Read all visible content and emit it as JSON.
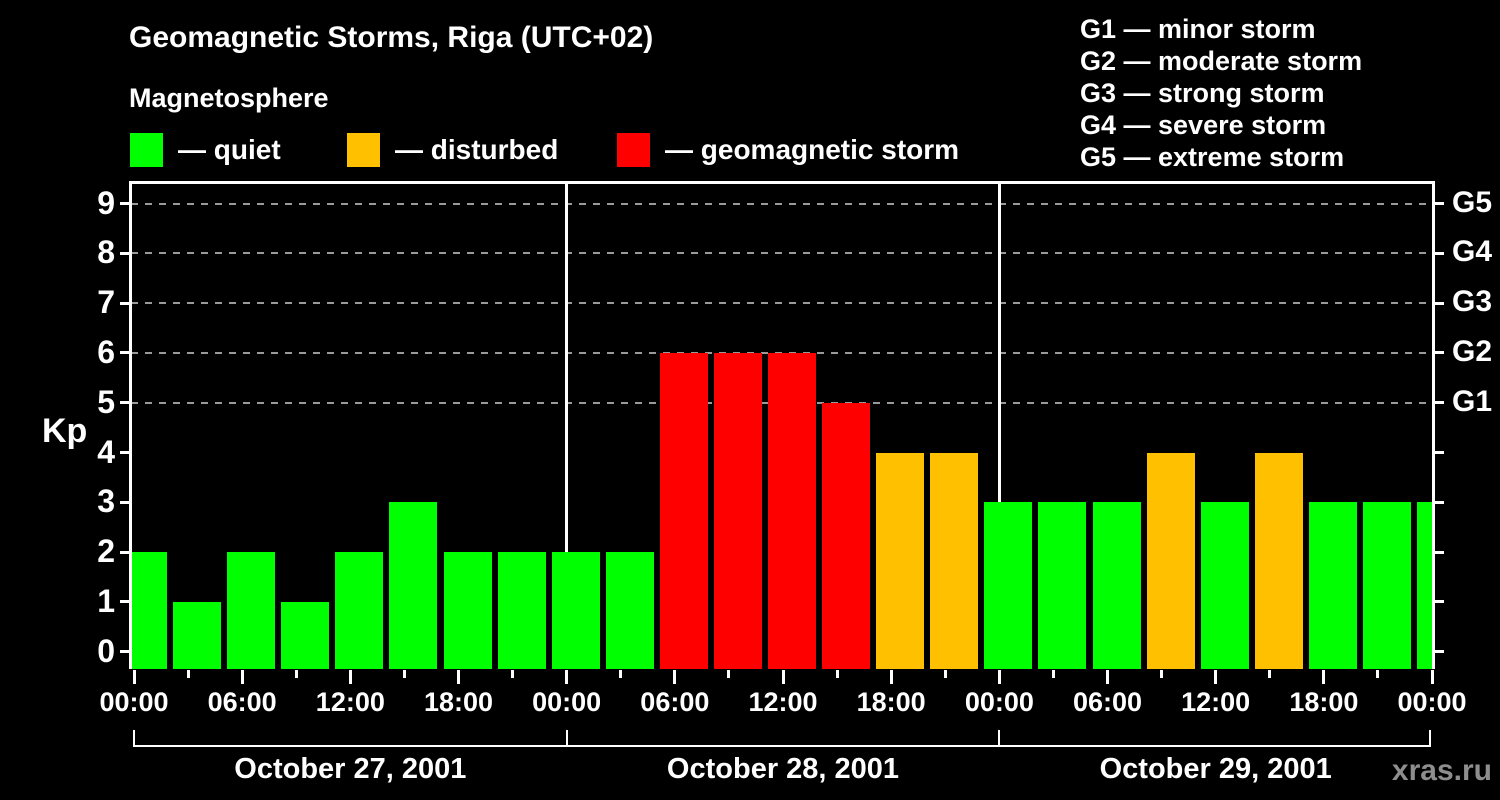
{
  "title": "Geomagnetic Storms, Riga (UTC+02)",
  "subtitle": "Magnetosphere",
  "legend": {
    "items": [
      {
        "label": "— quiet",
        "color": "#00ff00"
      },
      {
        "label": "— disturbed",
        "color": "#ffc000"
      },
      {
        "label": "— geomagnetic storm",
        "color": "#ff0000"
      }
    ]
  },
  "storm_scale_legend": [
    "G1 — minor storm",
    "G2 — moderate storm",
    "G3 — strong storm",
    "G4 — severe storm",
    "G5 — extreme storm"
  ],
  "watermark": "xras.ru",
  "chart_data": {
    "type": "bar",
    "ylabel": "Kp",
    "ylim": [
      0,
      9
    ],
    "y_ticks": [
      0,
      1,
      2,
      3,
      4,
      5,
      6,
      7,
      8,
      9
    ],
    "interval_hours": 3,
    "grid_dashed_at": [
      5,
      6,
      7,
      8,
      9
    ],
    "time_labels": [
      "00:00",
      "06:00",
      "12:00",
      "18:00"
    ],
    "days": [
      {
        "date": "October 27, 2001",
        "kp": [
          2,
          1,
          2,
          1,
          2,
          3,
          2,
          2
        ]
      },
      {
        "date": "October 28, 2001",
        "kp": [
          2,
          2,
          6,
          6,
          6,
          5,
          4,
          4
        ]
      },
      {
        "date": "October 29, 2001",
        "kp": [
          3,
          3,
          3,
          4,
          3,
          4,
          3,
          3
        ]
      }
    ],
    "trailing_kp": [
      3
    ],
    "color_rules": {
      "quiet_max": 3,
      "disturbed_max": 4,
      "quiet": "#00ff00",
      "disturbed": "#ffc000",
      "storm": "#ff0000"
    },
    "g_scale": [
      {
        "kp": 5,
        "label": "G1"
      },
      {
        "kp": 6,
        "label": "G2"
      },
      {
        "kp": 7,
        "label": "G3"
      },
      {
        "kp": 8,
        "label": "G4"
      },
      {
        "kp": 9,
        "label": "G5"
      }
    ]
  }
}
